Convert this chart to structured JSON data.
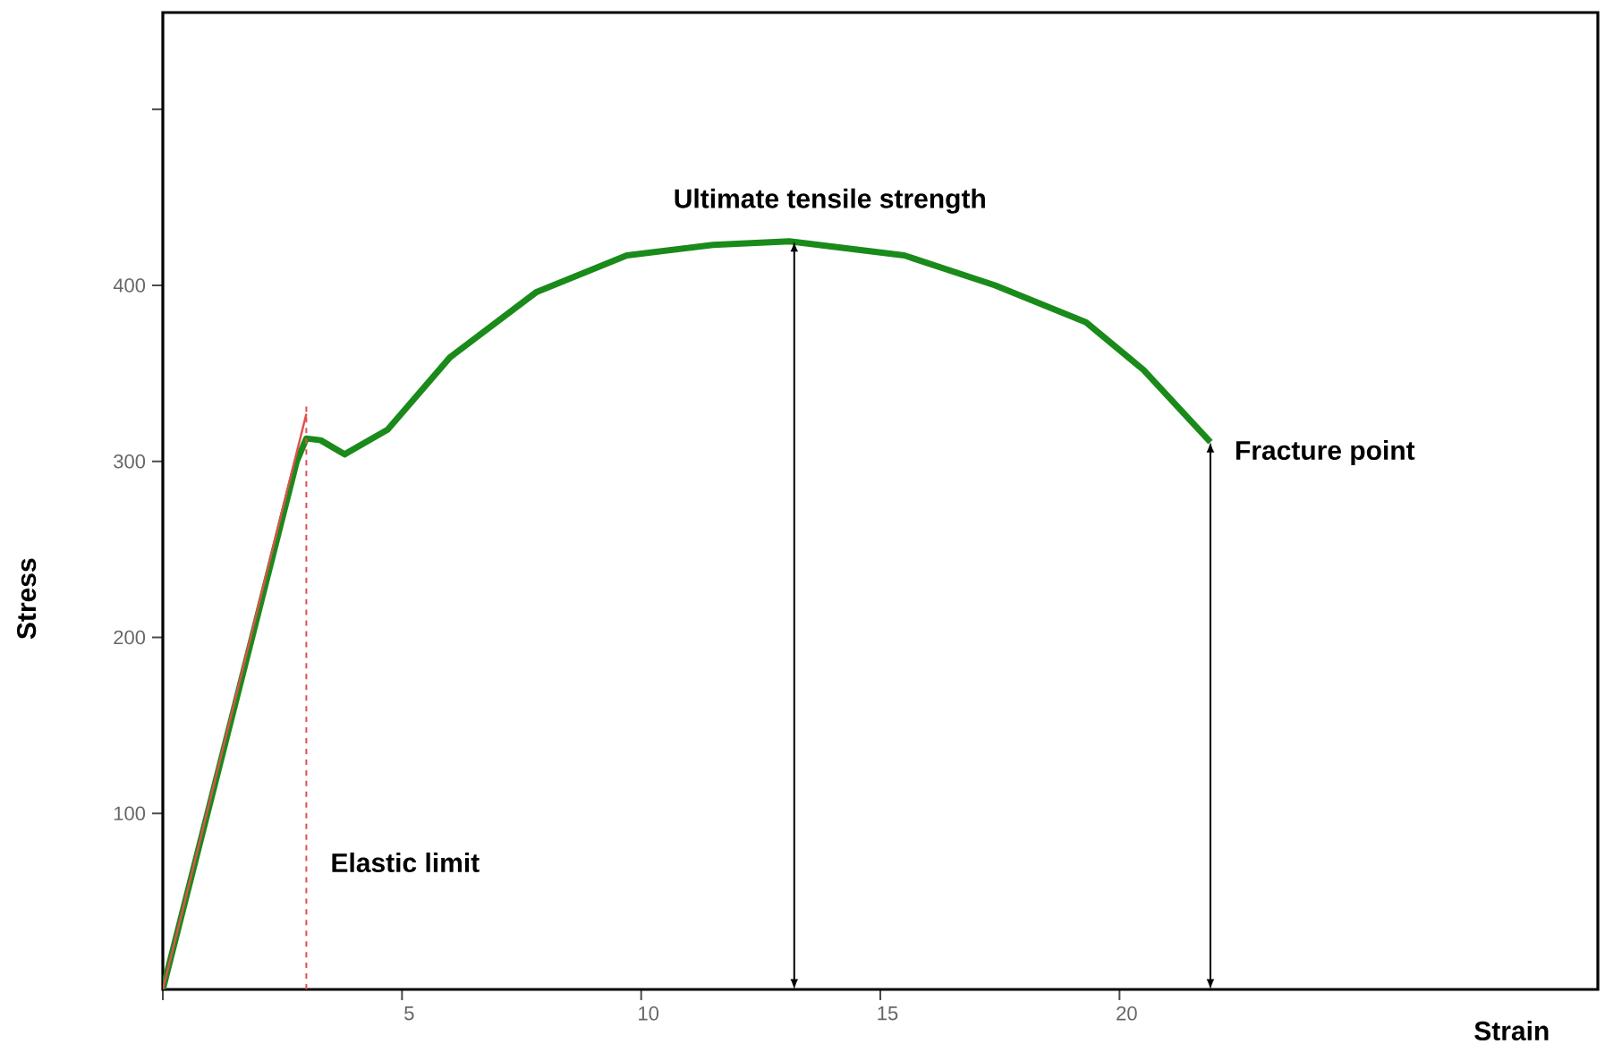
{
  "chart_data": {
    "type": "line",
    "xlabel": "Strain",
    "ylabel": "Stress",
    "xlim": [
      0,
      30
    ],
    "ylim": [
      0,
      555
    ],
    "xticks": [
      {
        "value": 0,
        "label": null
      },
      5,
      10,
      15,
      20
    ],
    "yticks": [
      100,
      200,
      300,
      400,
      {
        "value": 500,
        "label": null
      }
    ],
    "series": [
      {
        "color": "#e05050",
        "x": [
          0,
          3.0
        ],
        "values": [
          0,
          327
        ]
      },
      {
        "color": "#1a8a1a",
        "x": [
          0,
          2.8,
          3.0,
          3.3,
          3.8,
          4.7,
          6.0,
          7.8,
          9.7,
          11.5,
          13.1,
          15.5,
          17.4,
          19.3,
          20.5,
          21.9
        ],
        "values": [
          0,
          300,
          313,
          312,
          304,
          318,
          359,
          396,
          417,
          423,
          425,
          417,
          400,
          379,
          352,
          311
        ]
      }
    ],
    "ref_lines": [
      {
        "axis": "x",
        "value": 3.0,
        "label": "Elastic limit",
        "color": "#e05050",
        "line_style": "dashed"
      }
    ],
    "annotations": [
      {
        "text": "Ultimate tensile strength",
        "x": 13.2,
        "y": 425
      },
      {
        "text": "Fracture point",
        "x": 21.9,
        "y": 311
      }
    ],
    "grid": false,
    "marker": "none",
    "line_style": "solid"
  }
}
